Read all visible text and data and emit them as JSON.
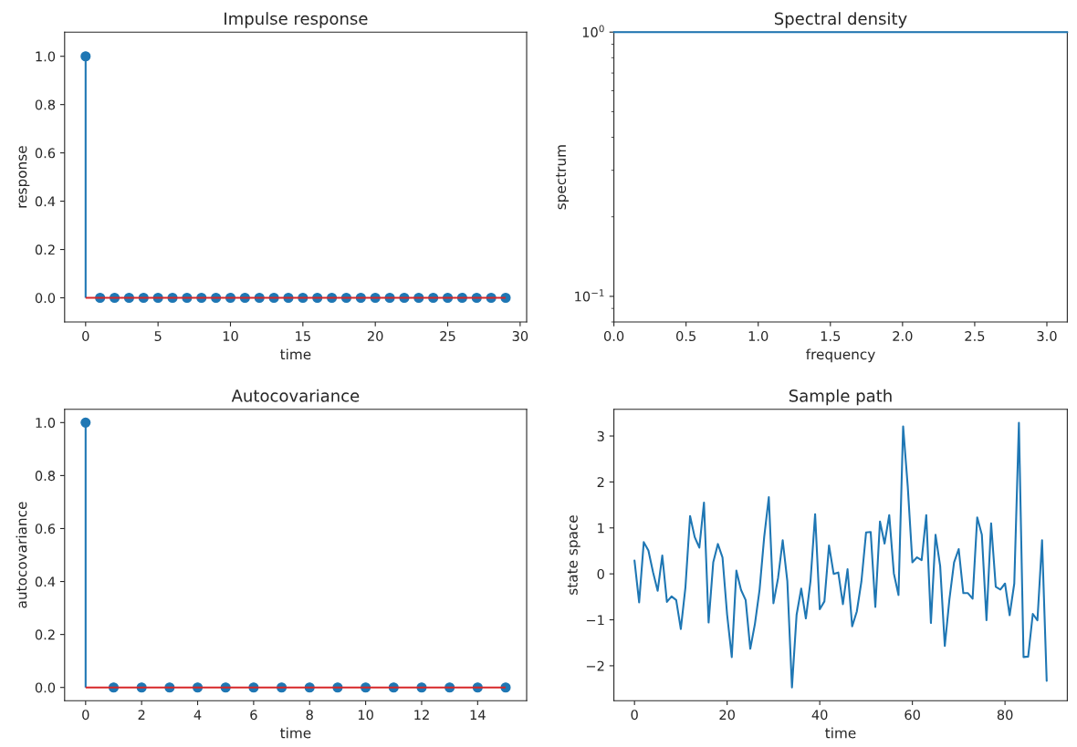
{
  "chart_data": [
    {
      "type": "lollipop",
      "title": "Impulse response",
      "xlabel": "time",
      "ylabel": "response",
      "x": [
        0,
        1,
        2,
        3,
        4,
        5,
        6,
        7,
        8,
        9,
        10,
        11,
        12,
        13,
        14,
        15,
        16,
        17,
        18,
        19,
        20,
        21,
        22,
        23,
        24,
        25,
        26,
        27,
        28,
        29
      ],
      "series": [
        {
          "color": "#1f77b4",
          "values": [
            1,
            0,
            0,
            0,
            0,
            0,
            0,
            0,
            0,
            0,
            0,
            0,
            0,
            0,
            0,
            0,
            0,
            0,
            0,
            0,
            0,
            0,
            0,
            0,
            0,
            0,
            0,
            0,
            0,
            0
          ]
        }
      ],
      "ref_lines": [
        {
          "axis": "y",
          "value": 0,
          "color": "#d62728"
        }
      ],
      "marker": "circle",
      "xlim": [
        -1.45,
        30.45
      ],
      "xticks": [
        0,
        5,
        10,
        15,
        20,
        25,
        30
      ],
      "ylim": [
        -0.1,
        1.1
      ],
      "yticks": [
        {
          "value": 0,
          "label": "0.0"
        },
        {
          "value": 0.2,
          "label": "0.2"
        },
        {
          "value": 0.4,
          "label": "0.4"
        },
        {
          "value": 0.6,
          "label": "0.6"
        },
        {
          "value": 0.8,
          "label": "0.8"
        },
        {
          "value": 1,
          "label": "1.0"
        }
      ],
      "grid": false
    },
    {
      "type": "line",
      "title": "Spectral density",
      "xlabel": "frequency",
      "ylabel": "spectrum",
      "log": "y",
      "series": [
        {
          "color": "#1f77b4",
          "x": [
            0,
            3.14159
          ],
          "values": [
            1,
            1
          ]
        }
      ],
      "xlim": [
        0,
        3.14159
      ],
      "xticks": [
        {
          "value": 0,
          "label": "0.0"
        },
        {
          "value": 0.5,
          "label": "0.5"
        },
        {
          "value": 1,
          "label": "1.0"
        },
        {
          "value": 1.5,
          "label": "1.5"
        },
        {
          "value": 2,
          "label": "2.0"
        },
        {
          "value": 2.5,
          "label": "2.5"
        },
        {
          "value": 3,
          "label": "3.0"
        }
      ],
      "ylim": [
        0.08,
        1
      ],
      "yticks": [
        {
          "value": 0.1,
          "label": "10$^{−1}$"
        },
        {
          "value": 1,
          "label": "10$^{0}$"
        }
      ],
      "grid": false
    },
    {
      "type": "lollipop",
      "title": "Autocovariance",
      "xlabel": "time",
      "ylabel": "autocovariance",
      "x": [
        0,
        1,
        2,
        3,
        4,
        5,
        6,
        7,
        8,
        9,
        10,
        11,
        12,
        13,
        14,
        15
      ],
      "series": [
        {
          "color": "#1f77b4",
          "values": [
            1,
            0,
            0,
            0,
            0,
            0,
            0,
            0,
            0,
            0,
            0,
            0,
            0,
            0,
            0,
            0
          ]
        }
      ],
      "ref_lines": [
        {
          "axis": "y",
          "value": 0,
          "color": "#d62728"
        }
      ],
      "marker": "circle",
      "xlim": [
        -0.75,
        15.75
      ],
      "xticks": [
        0,
        2,
        4,
        6,
        8,
        10,
        12,
        14
      ],
      "ylim": [
        -0.05,
        1.05
      ],
      "yticks": [
        {
          "value": 0,
          "label": "0.0"
        },
        {
          "value": 0.2,
          "label": "0.2"
        },
        {
          "value": 0.4,
          "label": "0.4"
        },
        {
          "value": 0.6,
          "label": "0.6"
        },
        {
          "value": 0.8,
          "label": "0.8"
        },
        {
          "value": 1,
          "label": "1.0"
        }
      ],
      "grid": false
    },
    {
      "type": "line",
      "title": "Sample path",
      "xlabel": "time",
      "ylabel": "state space",
      "x": [
        0,
        1,
        2,
        3,
        4,
        5,
        6,
        7,
        8,
        9,
        10,
        11,
        12,
        13,
        14,
        15,
        16,
        17,
        18,
        19,
        20,
        21,
        22,
        23,
        24,
        25,
        26,
        27,
        28,
        29,
        30,
        31,
        32,
        33,
        34,
        35,
        36,
        37,
        38,
        39,
        40,
        41,
        42,
        43,
        44,
        45,
        46,
        47,
        48,
        49,
        50,
        51,
        52,
        53,
        54,
        55,
        56,
        57,
        58,
        59,
        60,
        61,
        62,
        63,
        64,
        65,
        66,
        67,
        68,
        69,
        70,
        71,
        72,
        73,
        74,
        75,
        76,
        77,
        78,
        79,
        80,
        81,
        82,
        83,
        84,
        85,
        86,
        87,
        88,
        89
      ],
      "series": [
        {
          "color": "#1f77b4",
          "values": [
            0.29,
            -0.62,
            0.69,
            0.51,
            0.04,
            -0.37,
            0.4,
            -0.61,
            -0.49,
            -0.57,
            -1.2,
            -0.29,
            1.26,
            0.8,
            0.57,
            1.55,
            -1.06,
            0.25,
            0.65,
            0.36,
            -0.89,
            -1.81,
            0.07,
            -0.35,
            -0.57,
            -1.63,
            -1.09,
            -0.35,
            0.8,
            1.67,
            -0.64,
            -0.09,
            0.73,
            -0.16,
            -2.47,
            -0.89,
            -0.32,
            -0.97,
            -0.16,
            1.3,
            -0.77,
            -0.6,
            0.62,
            0.0,
            0.03,
            -0.66,
            0.1,
            -1.14,
            -0.82,
            -0.16,
            0.9,
            0.91,
            -0.72,
            1.14,
            0.66,
            1.28,
            0.01,
            -0.46,
            3.21,
            1.9,
            0.25,
            0.36,
            0.3,
            1.28,
            -1.07,
            0.85,
            0.17,
            -1.57,
            -0.55,
            0.25,
            0.54,
            -0.42,
            -0.42,
            -0.54,
            1.23,
            0.85,
            -1.01,
            1.1,
            -0.28,
            -0.34,
            -0.21,
            -0.9,
            -0.21,
            3.29,
            -1.81,
            -1.8,
            -0.87,
            -1.01,
            0.73,
            -2.33
          ]
        }
      ],
      "xlim": [
        -4.45,
        93.45
      ],
      "xticks": [
        0,
        20,
        40,
        60,
        80
      ],
      "ylim": [
        -2.76,
        3.58
      ],
      "yticks": [
        {
          "value": -2,
          "label": "−2"
        },
        {
          "value": -1,
          "label": "−1"
        },
        0,
        1,
        2,
        3
      ],
      "grid": false
    }
  ]
}
